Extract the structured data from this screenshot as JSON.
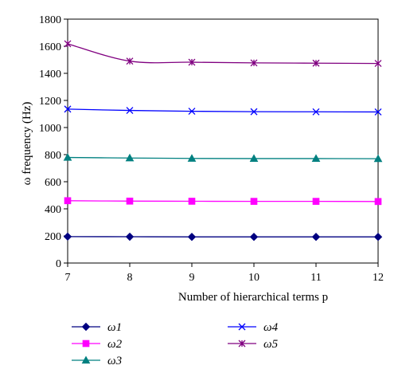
{
  "chart_data": {
    "type": "line",
    "xlabel": "Number of hierarchical terms p",
    "ylabel": "ω frequency (Hz)",
    "x": [
      7,
      8,
      9,
      10,
      11,
      12
    ],
    "xlim": [
      7,
      12
    ],
    "ylim": [
      0,
      1800
    ],
    "x_ticks": [
      "7",
      "8",
      "9",
      "10",
      "11",
      "12"
    ],
    "y_ticks": [
      "0",
      "200",
      "400",
      "600",
      "800",
      "1000",
      "1200",
      "1400",
      "1600",
      "1800"
    ],
    "grid": false,
    "legend_position": "bottom",
    "series": [
      {
        "name": "ω1",
        "color": "#000080",
        "marker": "diamond",
        "values": [
          195,
          194,
          193,
          193,
          193,
          193
        ]
      },
      {
        "name": "ω2",
        "color": "#ff00ff",
        "marker": "square",
        "values": [
          460,
          457,
          456,
          455,
          455,
          454
        ]
      },
      {
        "name": "ω3",
        "color": "#008080",
        "marker": "triangle",
        "values": [
          779,
          775,
          772,
          771,
          771,
          770
        ]
      },
      {
        "name": "ω4",
        "color": "#0000ff",
        "marker": "x",
        "values": [
          1136,
          1126,
          1120,
          1117,
          1116,
          1115
        ]
      },
      {
        "name": "ω5",
        "color": "#800080",
        "marker": "star",
        "values": [
          1618,
          1490,
          1482,
          1477,
          1475,
          1473
        ]
      }
    ]
  }
}
